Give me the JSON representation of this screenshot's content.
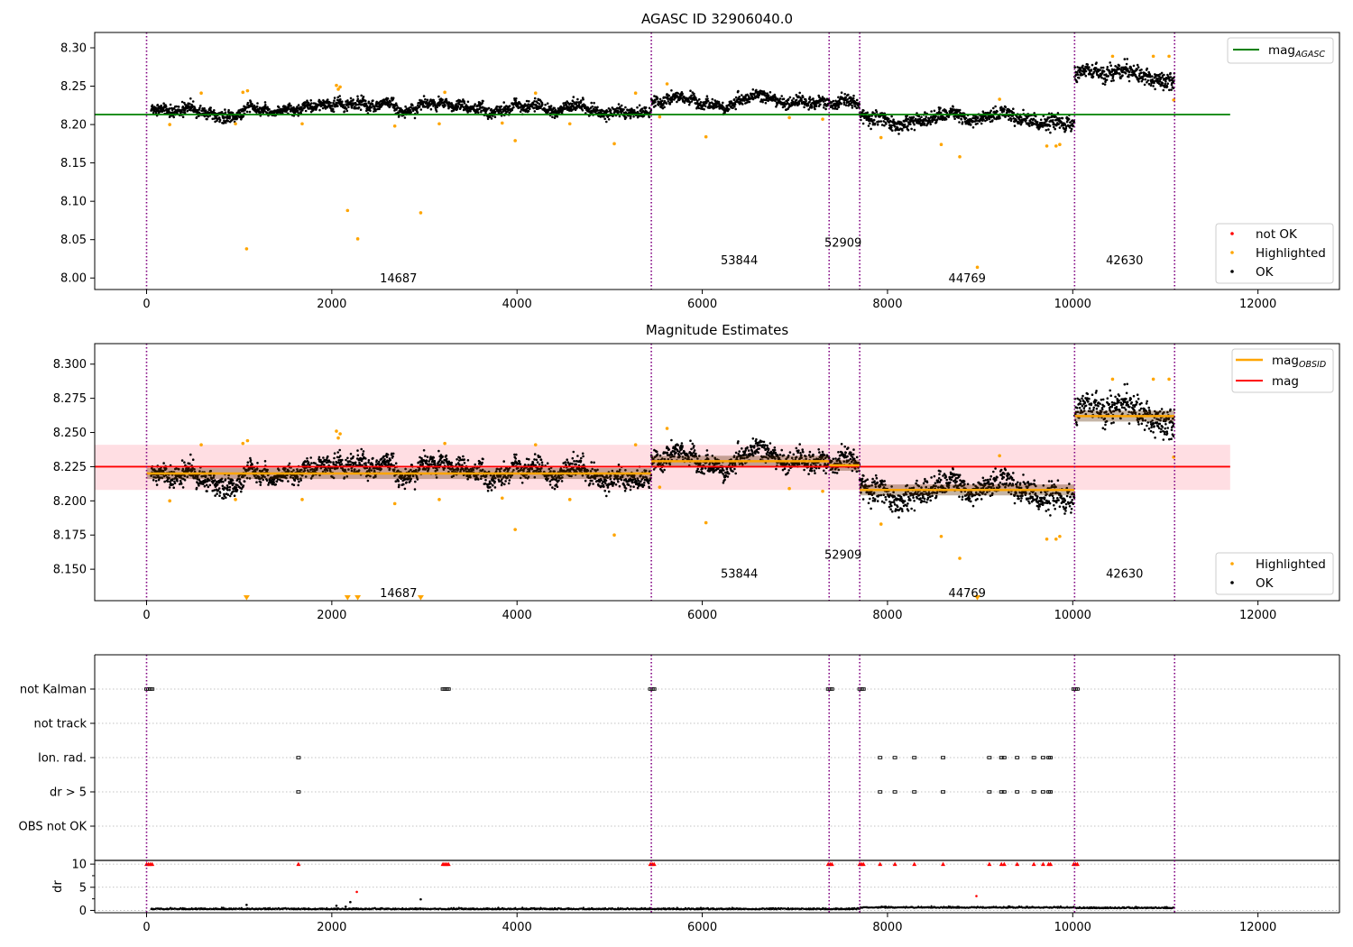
{
  "colors": {
    "ok": "#000000",
    "highlighted": "#ffa500",
    "not_ok": "#ff0000",
    "mag_agasc": "#008000",
    "mag_obsid": "#ffa500",
    "mag": "#ff0000",
    "mag_band": "#ffb6c1",
    "obs_boundary": "#800080",
    "flag_grid": "#b0b0b0"
  },
  "chart_data": [
    {
      "id": "top",
      "type": "scatter",
      "title": "AGASC ID 32906040.0",
      "xlim": [
        -560,
        12880
      ],
      "ylim": [
        7.985,
        8.32
      ],
      "x_ticks": [
        0,
        2000,
        4000,
        6000,
        8000,
        10000,
        12000
      ],
      "x_tick_labels": [
        "0",
        "2000",
        "4000",
        "6000",
        "8000",
        "10000",
        "12000"
      ],
      "y_ticks": [
        8.0,
        8.05,
        8.1,
        8.15,
        8.2,
        8.25,
        8.3
      ],
      "y_tick_labels": [
        "8.00",
        "8.05",
        "8.10",
        "8.15",
        "8.20",
        "8.25",
        "8.30"
      ],
      "hlines": [
        {
          "name": "mag_AGASC",
          "label_main": "mag",
          "label_sub": "AGASC",
          "y": 8.213,
          "x0": -560,
          "x1": 11700
        }
      ],
      "legend": {
        "position": "bottom-right",
        "entries": [
          "not OK",
          "Highlighted",
          "OK"
        ]
      },
      "legend_top": {
        "position": "top-right"
      },
      "obs_labels": [
        {
          "text": "14687",
          "x": 2720,
          "y": 8.0
        },
        {
          "text": "53844",
          "x": 6400,
          "y": 8.024
        },
        {
          "text": "52909",
          "x": 7520,
          "y": 8.047
        },
        {
          "text": "44769",
          "x": 8860,
          "y": 8.0
        },
        {
          "text": "42630",
          "x": 10560,
          "y": 8.024
        }
      ]
    },
    {
      "id": "middle",
      "type": "scatter",
      "title": "Magnitude Estimates",
      "xlim": [
        -560,
        12880
      ],
      "ylim": [
        8.127,
        8.315
      ],
      "x_ticks": [
        0,
        2000,
        4000,
        6000,
        8000,
        10000,
        12000
      ],
      "x_tick_labels": [
        "0",
        "2000",
        "4000",
        "6000",
        "8000",
        "10000",
        "12000"
      ],
      "y_ticks": [
        8.15,
        8.175,
        8.2,
        8.225,
        8.25,
        8.275,
        8.3
      ],
      "y_tick_labels": [
        "8.150",
        "8.175",
        "8.200",
        "8.225",
        "8.250",
        "8.275",
        "8.300"
      ],
      "mag": 8.225,
      "mag_band": [
        8.208,
        8.241
      ],
      "obsid_mags": [
        {
          "x0": 0,
          "x1": 5450,
          "y": 8.22
        },
        {
          "x0": 5450,
          "x1": 7370,
          "y": 8.229
        },
        {
          "x0": 7370,
          "x1": 7700,
          "y": 8.226
        },
        {
          "x0": 7700,
          "x1": 10020,
          "y": 8.208
        },
        {
          "x0": 10020,
          "x1": 11100,
          "y": 8.262
        }
      ],
      "legend": {
        "position": "bottom-right",
        "entries": [
          "Highlighted",
          "OK"
        ]
      },
      "legend_top": {
        "position": "top-right"
      },
      "obs_labels": [
        {
          "text": "14687",
          "x": 2720,
          "y": 8.133
        },
        {
          "text": "53844",
          "x": 6400,
          "y": 8.147
        },
        {
          "text": "52909",
          "x": 7520,
          "y": 8.161
        },
        {
          "text": "44769",
          "x": 8860,
          "y": 8.133
        },
        {
          "text": "42630",
          "x": 10560,
          "y": 8.147
        }
      ]
    },
    {
      "id": "flags",
      "type": "scatter",
      "xlim": [
        -560,
        12880
      ],
      "categories": [
        "not Kalman",
        "not track",
        "Ion. rad.",
        "dr > 5",
        "OBS not OK"
      ],
      "flagged": {
        "not Kalman": [
          0,
          20,
          40,
          60,
          3200,
          3220,
          3240,
          3260,
          5440,
          5460,
          5480,
          7360,
          7380,
          7400,
          7700,
          7720,
          7740,
          10010,
          10030,
          10050
        ],
        "Ion. rad.": [
          1640,
          7920,
          8080,
          8290,
          8600,
          9100,
          9230,
          9260,
          9400,
          9580,
          9680,
          9740,
          9760
        ],
        "dr > 5": [
          1640,
          7920,
          8080,
          8290,
          8600,
          9100,
          9230,
          9260,
          9400,
          9580,
          9680,
          9740,
          9760
        ]
      }
    },
    {
      "id": "dr",
      "type": "scatter",
      "ylabel": "dr",
      "xlim": [
        -560,
        12880
      ],
      "ylim": [
        -0.5,
        10.8
      ],
      "x_ticks": [
        0,
        2000,
        4000,
        6000,
        8000,
        10000,
        12000
      ],
      "x_tick_labels": [
        "0",
        "2000",
        "4000",
        "6000",
        "8000",
        "10000",
        "12000"
      ],
      "y_ticks": [
        0,
        5,
        10
      ],
      "y_tick_labels": [
        "0",
        "5",
        "10"
      ],
      "capped_points": [
        0,
        20,
        40,
        60,
        1640,
        3200,
        3220,
        3240,
        3260,
        5440,
        5460,
        5480,
        7360,
        7380,
        7400,
        7700,
        7720,
        7740,
        7920,
        8080,
        8290,
        8600,
        9100,
        9230,
        9260,
        9400,
        9580,
        9680,
        9740,
        9760,
        10010,
        10030,
        10050
      ]
    }
  ],
  "observations": [
    {
      "obsid": "14687",
      "start": 0,
      "end": 5450,
      "median": 8.22,
      "spread": 0.006
    },
    {
      "obsid": "53844",
      "start": 5450,
      "end": 7370,
      "median": 8.229,
      "spread": 0.006
    },
    {
      "obsid": "52909",
      "start": 7370,
      "end": 7700,
      "median": 8.226,
      "spread": 0.006
    },
    {
      "obsid": "44769",
      "start": 7700,
      "end": 10020,
      "median": 8.208,
      "spread": 0.0075
    },
    {
      "obsid": "42630",
      "start": 10020,
      "end": 11100,
      "median": 8.262,
      "spread": 0.009
    }
  ],
  "boundaries": [
    0,
    5450,
    7370,
    7700,
    10020,
    11100
  ],
  "highlighted_points": [
    {
      "x": 1080,
      "y": 8.038
    },
    {
      "x": 2170,
      "y": 8.088
    },
    {
      "x": 2280,
      "y": 8.051
    },
    {
      "x": 2960,
      "y": 8.085
    },
    {
      "x": 3980,
      "y": 8.179
    },
    {
      "x": 5050,
      "y": 8.175
    },
    {
      "x": 6040,
      "y": 8.184
    },
    {
      "x": 8580,
      "y": 8.174
    },
    {
      "x": 8780,
      "y": 8.158
    },
    {
      "x": 8970,
      "y": 8.014
    },
    {
      "x": 9720,
      "y": 8.172
    },
    {
      "x": 9820,
      "y": 8.172
    },
    {
      "x": 9860,
      "y": 8.174
    },
    {
      "x": 2050,
      "y": 8.251
    },
    {
      "x": 2070,
      "y": 8.246
    },
    {
      "x": 2090,
      "y": 8.249
    },
    {
      "x": 1040,
      "y": 8.242
    },
    {
      "x": 1090,
      "y": 8.244
    },
    {
      "x": 590,
      "y": 8.241
    },
    {
      "x": 5620,
      "y": 8.253
    },
    {
      "x": 10430,
      "y": 8.289
    },
    {
      "x": 10870,
      "y": 8.289
    },
    {
      "x": 11040,
      "y": 8.289
    },
    {
      "x": 3220,
      "y": 8.242
    },
    {
      "x": 4200,
      "y": 8.241
    },
    {
      "x": 5280,
      "y": 8.241
    },
    {
      "x": 7300,
      "y": 8.207
    },
    {
      "x": 5540,
      "y": 8.21
    },
    {
      "x": 250,
      "y": 8.2
    },
    {
      "x": 960,
      "y": 8.201
    },
    {
      "x": 1680,
      "y": 8.201
    },
    {
      "x": 2680,
      "y": 8.198
    },
    {
      "x": 3160,
      "y": 8.201
    },
    {
      "x": 3840,
      "y": 8.202
    },
    {
      "x": 4570,
      "y": 8.201
    },
    {
      "x": 6940,
      "y": 8.209
    },
    {
      "x": 7930,
      "y": 8.183
    },
    {
      "x": 9210,
      "y": 8.233
    },
    {
      "x": 11090,
      "y": 8.232
    }
  ],
  "dr_extra_points": [
    {
      "x": 1080,
      "y": 1.2,
      "kind": "ok"
    },
    {
      "x": 2270,
      "y": 4.0,
      "kind": "not_ok"
    },
    {
      "x": 2960,
      "y": 2.4,
      "kind": "ok"
    },
    {
      "x": 8960,
      "y": 3.1,
      "kind": "not_ok"
    },
    {
      "x": 2050,
      "y": 1.0,
      "kind": "ok"
    },
    {
      "x": 2150,
      "y": 0.8,
      "kind": "ok"
    },
    {
      "x": 2200,
      "y": 1.8,
      "kind": "ok"
    }
  ]
}
